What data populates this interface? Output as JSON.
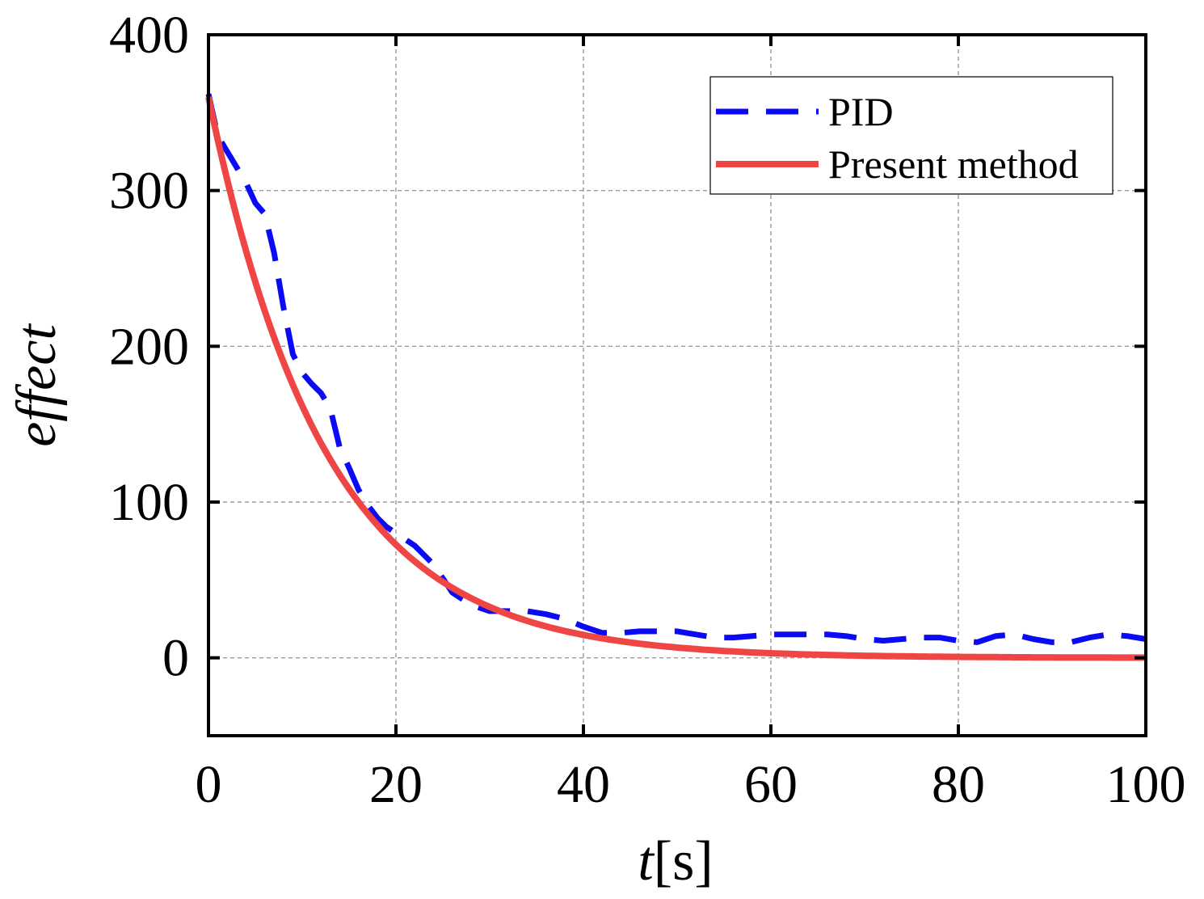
{
  "chart_data": {
    "type": "line",
    "title": "",
    "xlabel_italic": "t",
    "xlabel_unit": "[s]",
    "ylabel": "effect",
    "xlim": [
      0,
      100
    ],
    "ylim": [
      -50,
      400
    ],
    "xticks": [
      0,
      20,
      40,
      60,
      80,
      100
    ],
    "yticks": [
      0,
      100,
      200,
      300,
      400
    ],
    "grid": true,
    "legend_position": "top-right",
    "series": [
      {
        "name": "PID",
        "style": "dashed",
        "color": "#0a0af5",
        "x": [
          0,
          1,
          2,
          3,
          4,
          5,
          6,
          7,
          8,
          9,
          10,
          11,
          12,
          13,
          14,
          15,
          16,
          17,
          18,
          19,
          20,
          22,
          24,
          26,
          27,
          28,
          30,
          32,
          34,
          36,
          38,
          40,
          42,
          44,
          46,
          48,
          50,
          52,
          54,
          56,
          58,
          60,
          62,
          64,
          66,
          68,
          70,
          72,
          74,
          76,
          78,
          80,
          82,
          84,
          86,
          88,
          90,
          92,
          94,
          96,
          98,
          100
        ],
        "y": [
          362,
          335,
          325,
          315,
          305,
          292,
          285,
          260,
          225,
          195,
          183,
          176,
          170,
          160,
          135,
          122,
          108,
          98,
          90,
          84,
          80,
          72,
          60,
          42,
          38,
          34,
          30,
          30,
          30,
          28,
          25,
          20,
          16,
          16,
          17,
          17,
          17,
          15,
          13,
          13,
          14,
          15,
          15,
          15,
          15,
          14,
          12,
          11,
          12,
          13,
          13,
          11,
          10,
          14,
          15,
          12,
          10,
          10,
          13,
          15,
          14,
          12
        ]
      },
      {
        "name": "Present method",
        "style": "solid",
        "color": "#f04545",
        "decay_start": 360,
        "decay_tau": 12.5
      }
    ]
  }
}
